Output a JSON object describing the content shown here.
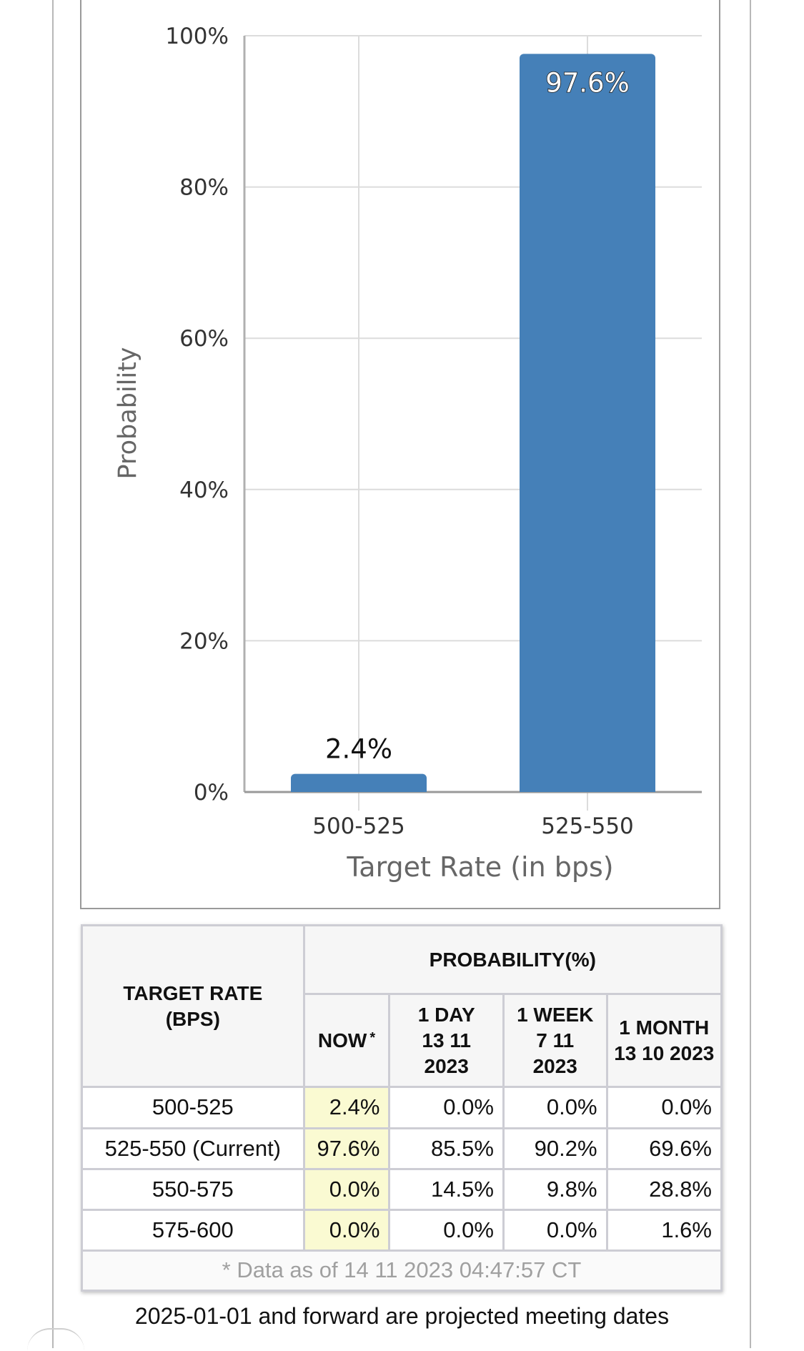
{
  "chart_data": {
    "type": "bar",
    "categories": [
      "500-525",
      "525-550"
    ],
    "values": [
      2.4,
      97.6
    ],
    "value_labels": [
      "2.4%",
      "97.6%"
    ],
    "xlabel": "Target Rate (in bps)",
    "ylabel": "Probability",
    "ylim": [
      0,
      100
    ],
    "yticks": [
      0,
      20,
      40,
      60,
      80,
      100
    ],
    "ytick_labels": [
      "0%",
      "20%",
      "40%",
      "60%",
      "80%",
      "100%"
    ],
    "grid": true,
    "bar_color": "#4580B8"
  },
  "table": {
    "target_rate_header": "TARGET RATE (BPS)",
    "probability_header": "PROBABILITY(%)",
    "now_header": "NOW",
    "now_marker": "*",
    "col_1day": "1 DAY 13 11 2023",
    "col_1week": "1 WEEK 7 11 2023",
    "col_1month": "1 MONTH 13 10 2023",
    "rows": [
      {
        "rate": "500-525",
        "now": "2.4%",
        "day": "0.0%",
        "week": "0.0%",
        "month": "0.0%"
      },
      {
        "rate": "525-550 (Current)",
        "now": "97.6%",
        "day": "85.5%",
        "week": "90.2%",
        "month": "69.6%"
      },
      {
        "rate": "550-575",
        "now": "0.0%",
        "day": "14.5%",
        "week": "9.8%",
        "month": "28.8%"
      },
      {
        "rate": "575-600",
        "now": "0.0%",
        "day": "0.0%",
        "week": "0.0%",
        "month": "1.6%"
      }
    ],
    "data_note": "* Data as of 14 11 2023 04:47:57 CT",
    "now_highlight_color": "#FAFAD2"
  },
  "footer": "2025-01-01 and forward are projected meeting dates"
}
